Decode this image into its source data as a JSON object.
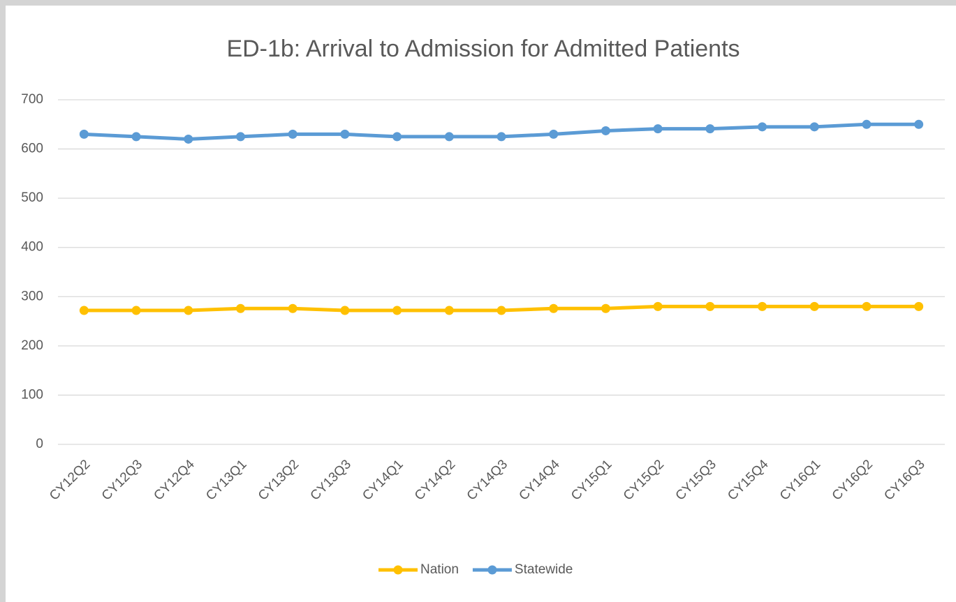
{
  "chart_data": {
    "type": "line",
    "title": "ED-1b: Arrival to Admission for Admitted Patients",
    "categories": [
      "CY12Q2",
      "CY12Q3",
      "CY12Q4",
      "CY13Q1",
      "CY13Q2",
      "CY13Q3",
      "CY14Q1",
      "CY14Q2",
      "CY14Q3",
      "CY14Q4",
      "CY15Q1",
      "CY15Q2",
      "CY15Q3",
      "CY15Q4",
      "CY16Q1",
      "CY16Q2",
      "CY16Q3"
    ],
    "series": [
      {
        "name": "Nation",
        "color": "#ffc000",
        "values": [
          272,
          272,
          272,
          276,
          276,
          272,
          272,
          272,
          272,
          276,
          276,
          280,
          280,
          280,
          280,
          280,
          280
        ]
      },
      {
        "name": "Statewide",
        "color": "#5b9bd5",
        "values": [
          630,
          625,
          620,
          625,
          630,
          630,
          625,
          625,
          625,
          630,
          637,
          641,
          641,
          645,
          645,
          650,
          650
        ]
      }
    ],
    "ylim": [
      0,
      700
    ],
    "yticks": [
      0,
      100,
      200,
      300,
      400,
      500,
      600,
      700
    ],
    "grid": true,
    "legend": "bottom"
  }
}
